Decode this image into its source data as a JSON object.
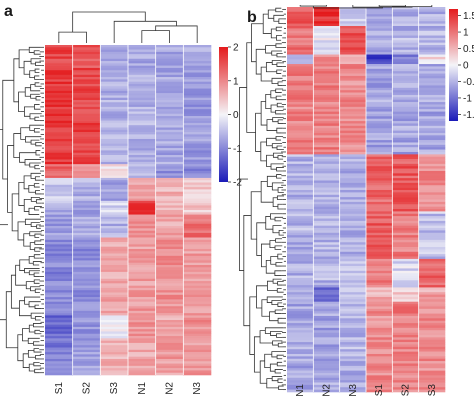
{
  "chart_data": [
    {
      "type": "heatmap",
      "panel_label": "a",
      "columns": [
        "S1",
        "S2",
        "S3",
        "N1",
        "N2",
        "N3"
      ],
      "color_scale": {
        "min": -2,
        "max": 2,
        "low": "#1a1ab8",
        "mid": "#f4f4f8",
        "high": "#e41a1c"
      },
      "colorbar_ticks": [
        {
          "value": 2,
          "label": "2"
        },
        {
          "value": 1,
          "label": "1"
        },
        {
          "value": 0,
          "label": "0"
        },
        {
          "value": -1,
          "label": "-1"
        },
        {
          "value": -2,
          "label": "-2"
        }
      ],
      "row_blocks": [
        {
          "rows": 10,
          "values": [
            1.6,
            1.4,
            -0.6,
            -0.7,
            -0.7,
            -0.7
          ]
        },
        {
          "rows": 42,
          "values": [
            1.7,
            1.6,
            -0.6,
            -0.6,
            -0.7,
            -0.8
          ]
        },
        {
          "rows": 6,
          "values": [
            1.3,
            0.9,
            0.2,
            -0.6,
            -0.9,
            -1.0
          ]
        },
        {
          "rows": 10,
          "values": [
            -0.4,
            -0.6,
            -0.7,
            0.8,
            0.6,
            0.4
          ]
        },
        {
          "rows": 6,
          "values": [
            -0.6,
            -0.8,
            -0.3,
            1.8,
            0.5,
            0.4
          ]
        },
        {
          "rows": 10,
          "values": [
            -0.8,
            -0.7,
            -0.6,
            0.9,
            0.7,
            1.2
          ]
        },
        {
          "rows": 34,
          "values": [
            -1.0,
            -0.9,
            0.7,
            0.8,
            0.9,
            0.8
          ]
        },
        {
          "rows": 10,
          "values": [
            -1.3,
            -0.9,
            0.0,
            0.9,
            0.7,
            0.9
          ]
        },
        {
          "rows": 16,
          "values": [
            -1.1,
            -0.8,
            0.6,
            0.7,
            0.8,
            0.8
          ]
        }
      ]
    },
    {
      "type": "heatmap",
      "panel_label": "b",
      "columns": [
        "N1",
        "N2",
        "N3",
        "S1",
        "S2",
        "S3"
      ],
      "color_scale": {
        "min": -1.7,
        "max": 1.7,
        "low": "#1a1ab8",
        "mid": "#f4f4f8",
        "high": "#e41a1c"
      },
      "colorbar_ticks": [
        {
          "value": 1.5,
          "label": "1.5"
        },
        {
          "value": 1,
          "label": "1"
        },
        {
          "value": 0.5,
          "label": "0.5"
        },
        {
          "value": 0,
          "label": "0"
        },
        {
          "value": -0.5,
          "label": "-0.5"
        },
        {
          "value": -1,
          "label": "-1"
        },
        {
          "value": -1.5,
          "label": "-1.5"
        }
      ],
      "row_blocks": [
        {
          "rows": 8,
          "values": [
            1.2,
            1.5,
            -0.4,
            -0.5,
            -0.5,
            -0.5
          ]
        },
        {
          "rows": 12,
          "values": [
            1.0,
            -0.1,
            1.3,
            -0.5,
            -0.5,
            -0.5
          ]
        },
        {
          "rows": 4,
          "values": [
            -0.3,
            0.9,
            0.6,
            -1.4,
            -0.9,
            0.2
          ]
        },
        {
          "rows": 38,
          "values": [
            0.9,
            0.9,
            0.8,
            -0.6,
            -0.6,
            -0.6
          ]
        },
        {
          "rows": 24,
          "values": [
            -0.5,
            -0.5,
            -0.5,
            1.1,
            1.2,
            0.8
          ]
        },
        {
          "rows": 20,
          "values": [
            -0.5,
            -0.5,
            -0.5,
            1.2,
            0.9,
            -0.4
          ]
        },
        {
          "rows": 12,
          "values": [
            -0.5,
            -0.5,
            -0.4,
            1.0,
            -0.2,
            1.1
          ]
        },
        {
          "rows": 6,
          "values": [
            -0.6,
            -1.2,
            -0.3,
            0.5,
            0.3,
            0.6
          ]
        },
        {
          "rows": 38,
          "values": [
            -0.6,
            -0.6,
            -0.5,
            0.8,
            0.9,
            0.8
          ]
        }
      ]
    }
  ]
}
